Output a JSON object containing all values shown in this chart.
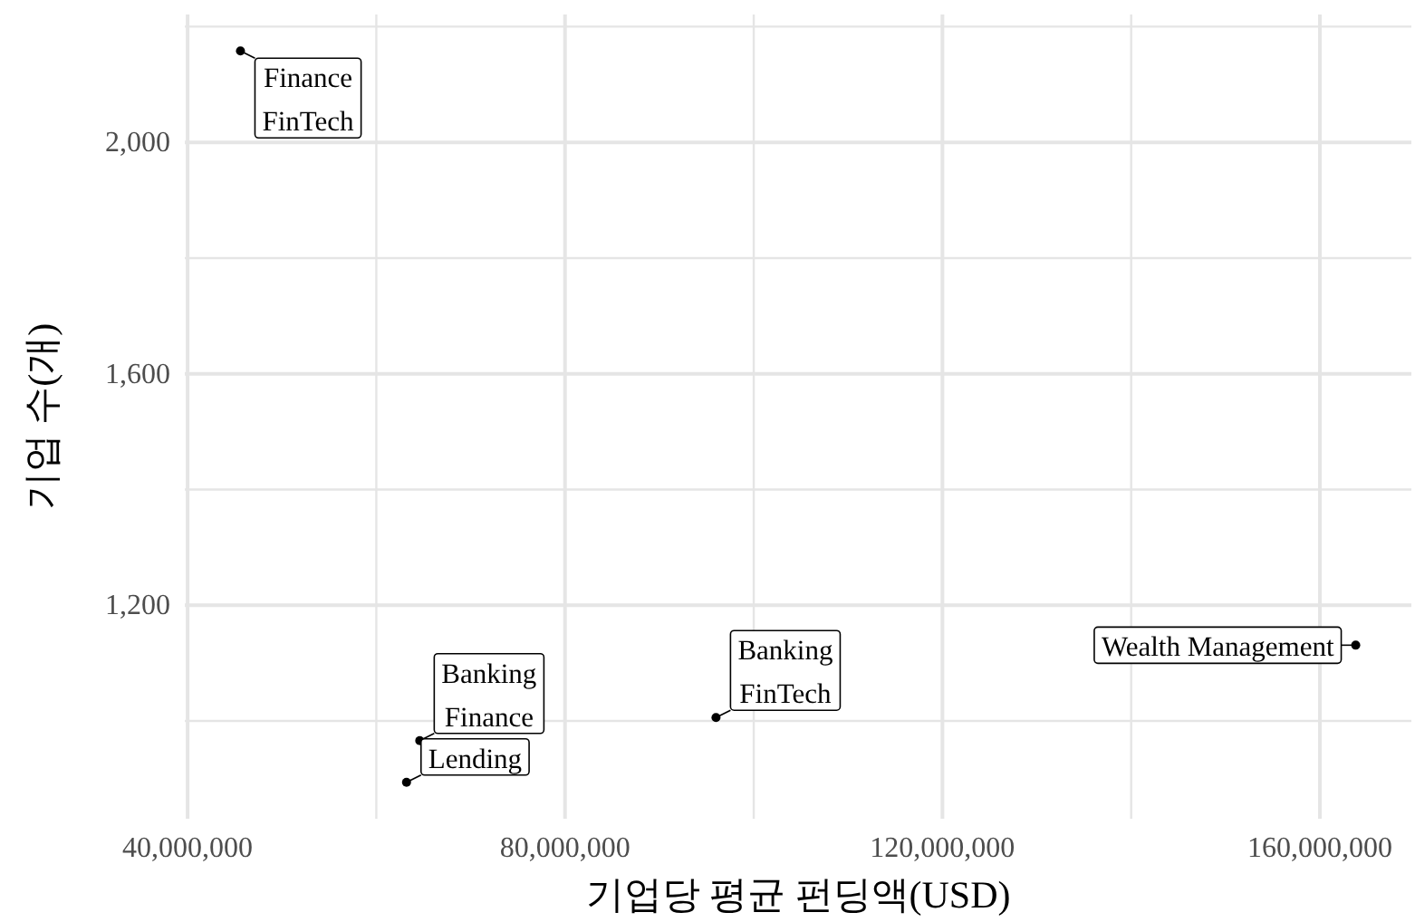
{
  "chart_data": {
    "type": "scatter",
    "xlabel": "기업당 평균 펀딩액(USD)",
    "ylabel": "기업 수(개)",
    "x": [
      45600000,
      64600000,
      63200000,
      96000000,
      163800000
    ],
    "values": [
      2158,
      966,
      894,
      1006,
      1131
    ],
    "color": "#000000",
    "marker": "circle",
    "grid": true,
    "xlim": [
      39700000,
      169700000
    ],
    "ylim": [
      831,
      2221
    ],
    "xticks": [
      {
        "value": 40000000,
        "label": "40,000,000"
      },
      {
        "value": 60000000,
        "label": null
      },
      {
        "value": 80000000,
        "label": "80,000,000"
      },
      {
        "value": 100000000,
        "label": null
      },
      {
        "value": 120000000,
        "label": "120,000,000"
      },
      {
        "value": 140000000,
        "label": null
      },
      {
        "value": 160000000,
        "label": "160,000,000"
      }
    ],
    "yticks": [
      {
        "value": 1000,
        "label": null
      },
      {
        "value": 1200,
        "label": "1,200"
      },
      {
        "value": 1400,
        "label": null
      },
      {
        "value": 1600,
        "label": "1,600"
      },
      {
        "value": 1800,
        "label": null
      },
      {
        "value": 2000,
        "label": "2,000"
      },
      {
        "value": 2200,
        "label": null
      }
    ],
    "annotations": [
      {
        "text": "Finance\nFinTech",
        "x": 45600000,
        "y": 2158
      },
      {
        "text": "Banking\nFinance",
        "x": 64600000,
        "y": 966
      },
      {
        "text": "Lending",
        "x": 63200000,
        "y": 894
      },
      {
        "text": "Banking\nFinTech",
        "x": 96000000,
        "y": 1006
      },
      {
        "text": "Wealth Management",
        "x": 163800000,
        "y": 1131
      }
    ]
  }
}
